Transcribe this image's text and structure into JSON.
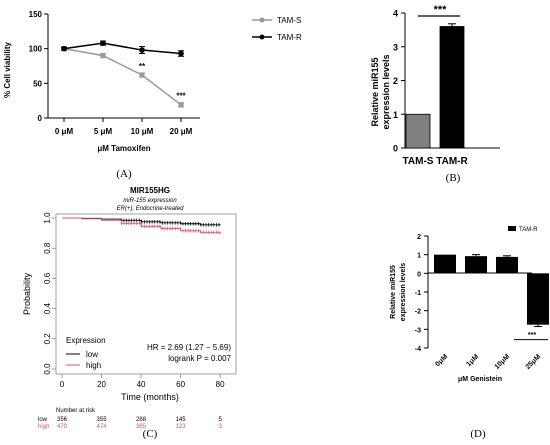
{
  "panels": {
    "A": "(A)",
    "B": "(B)",
    "C": "(C)",
    "D": "(D)"
  },
  "chart_data": [
    {
      "id": "A",
      "type": "line",
      "ylabel": "% Cell viability",
      "xlabel": "μM Tamoxifen",
      "categories": [
        "0 μM",
        "5 μM",
        "10 μM",
        "20 μM"
      ],
      "yticks": [
        "0",
        "50",
        "100",
        "150"
      ],
      "ylim": [
        0,
        150
      ],
      "legend_position": "right",
      "series": [
        {
          "name": "TAM-S",
          "color": "#999999",
          "values": [
            100,
            90,
            62,
            19
          ],
          "err": [
            2,
            3,
            3,
            3
          ]
        },
        {
          "name": "TAM-R",
          "color": "#000000",
          "values": [
            100,
            108,
            98,
            93
          ],
          "err": [
            2,
            3,
            5,
            4
          ]
        }
      ],
      "annotations": [
        {
          "category_index": 2,
          "text": "**"
        },
        {
          "category_index": 3,
          "text": "***"
        }
      ]
    },
    {
      "id": "B",
      "type": "bar",
      "ylabel_lines": [
        "Relative miR155",
        "expression levels"
      ],
      "categories": [
        "TAM-S",
        "TAM-R"
      ],
      "values": [
        1.0,
        3.6
      ],
      "err": [
        0,
        0.08
      ],
      "colors": [
        "#808080",
        "#000000"
      ],
      "yticks": [
        "0",
        "1",
        "2",
        "3",
        "4"
      ],
      "ylim": [
        0,
        4
      ],
      "significance": "***"
    },
    {
      "id": "C",
      "type": "line",
      "title": "MIR155HG",
      "subtitle_lines": [
        "miR-155 expression",
        "ER(+), Endocrine-treated"
      ],
      "xlabel": "Time (months)",
      "ylabel": "Probability",
      "xticks": [
        "0",
        "20",
        "40",
        "60",
        "80"
      ],
      "yticks": [
        "0.0",
        "0.2",
        "0.4",
        "0.6",
        "0.8",
        "1.0"
      ],
      "xlim": [
        0,
        85
      ],
      "ylim": [
        0,
        1
      ],
      "legend_title": "Expression",
      "series": [
        {
          "name": "low",
          "color": "#000000",
          "points": [
            [
              0,
              1.0
            ],
            [
              10,
              0.998
            ],
            [
              20,
              0.993
            ],
            [
              30,
              0.985
            ],
            [
              40,
              0.975
            ],
            [
              50,
              0.968
            ],
            [
              60,
              0.962
            ],
            [
              70,
              0.955
            ],
            [
              80,
              0.95
            ]
          ]
        },
        {
          "name": "high",
          "color": "#e0506e",
          "points": [
            [
              0,
              1.0
            ],
            [
              10,
              0.995
            ],
            [
              20,
              0.985
            ],
            [
              30,
              0.965
            ],
            [
              40,
              0.945
            ],
            [
              50,
              0.93
            ],
            [
              60,
              0.915
            ],
            [
              70,
              0.905
            ],
            [
              80,
              0.895
            ]
          ]
        }
      ],
      "stats": [
        "HR = 2.69 (1.27 − 5.69)",
        "logrank P = 0.007"
      ],
      "risk_table": {
        "title": "Number at risk",
        "rows": [
          {
            "name": "low",
            "color": "#000000",
            "values": [
              "356",
              "355",
              "288",
              "145",
              "5"
            ]
          },
          {
            "name": "high",
            "color": "#e0506e",
            "values": [
              "479",
              "474",
              "365",
              "123",
              "3"
            ]
          }
        ]
      }
    },
    {
      "id": "D",
      "type": "bar",
      "ylabel_lines": [
        "Relative miR155",
        "expression levels"
      ],
      "xlabel": "μM Genistein",
      "categories": [
        "0μM",
        "1μM",
        "10μM",
        "25μM"
      ],
      "values": [
        1.0,
        0.92,
        0.88,
        -2.75
      ],
      "err": [
        0,
        0.08,
        0.06,
        0.1
      ],
      "yticks": [
        "2",
        "1",
        "0",
        "-1",
        "-2",
        "-3",
        "-4"
      ],
      "ylim": [
        -4,
        2
      ],
      "legend": "TAM-R",
      "significance": "***"
    }
  ]
}
